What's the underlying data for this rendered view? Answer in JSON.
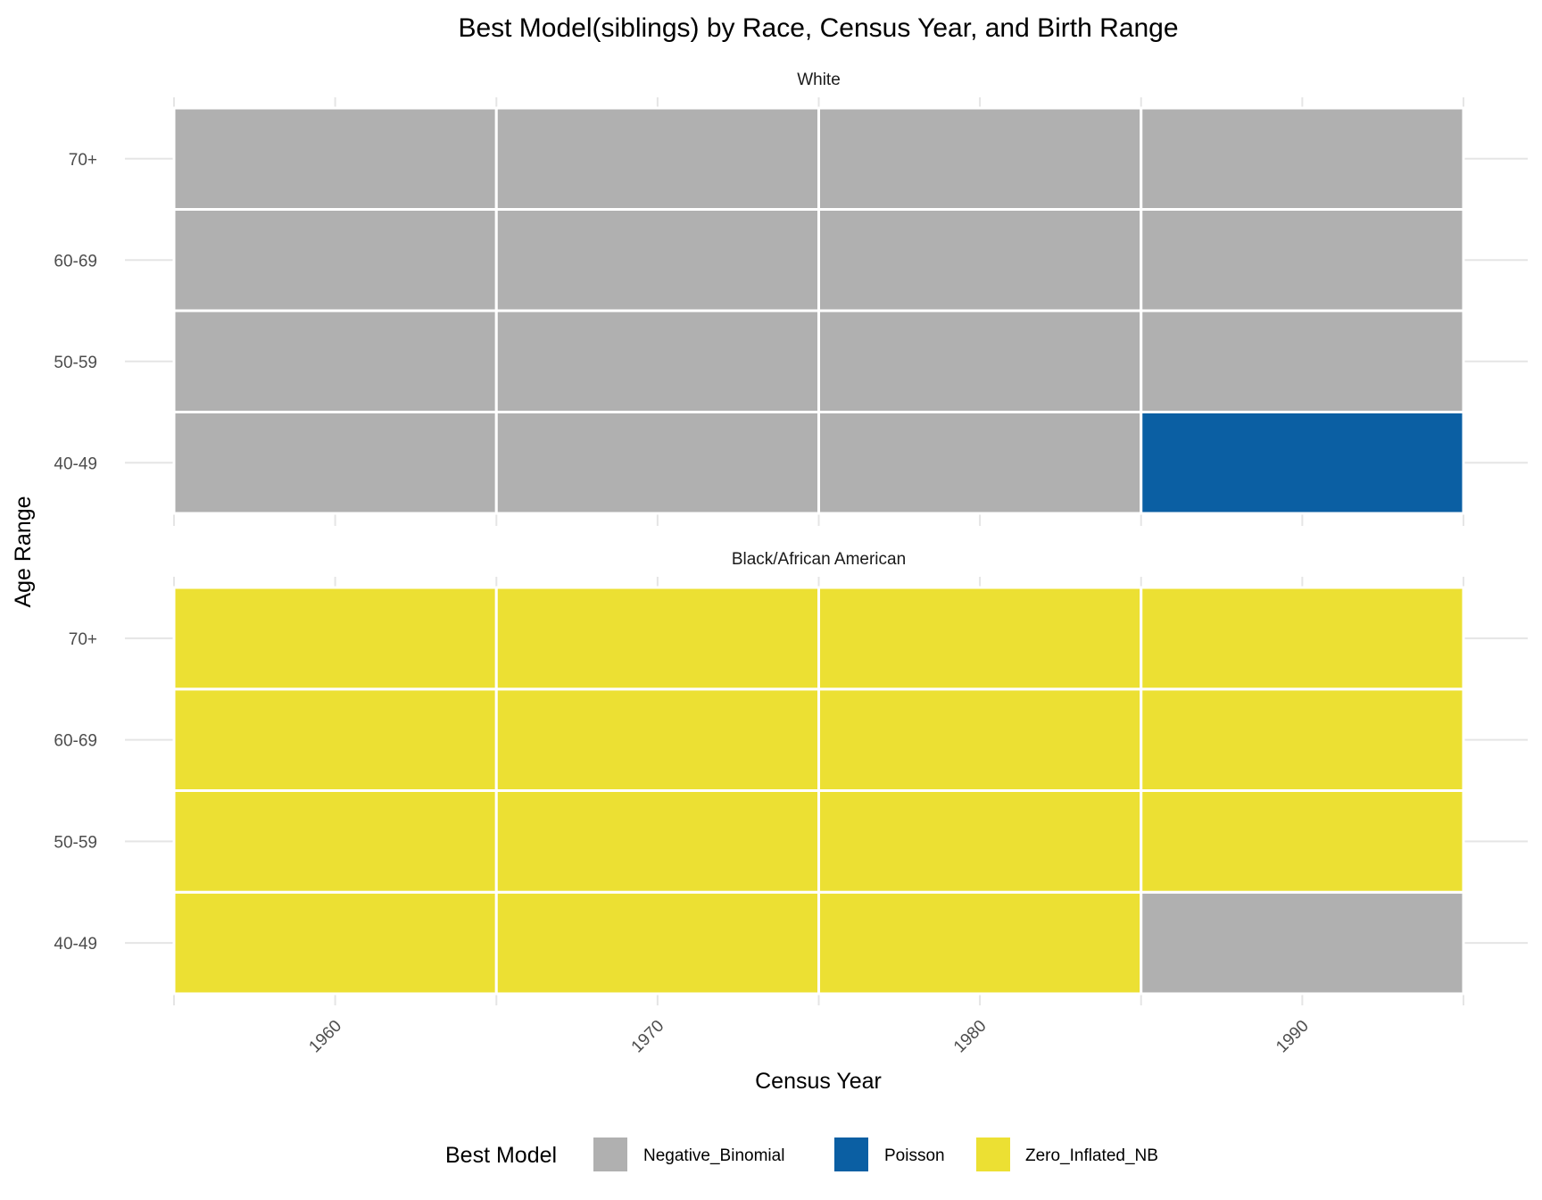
{
  "chart_data": {
    "type": "heatmap",
    "title": "Best Model(siblings) by Race, Census Year, and Birth Range",
    "xlabel": "Census Year",
    "ylabel": "Age Range",
    "x_categories": [
      "1960",
      "1970",
      "1980",
      "1990"
    ],
    "y_categories": [
      "40-49",
      "50-59",
      "60-69",
      "70+"
    ],
    "legend": {
      "title": "Best Model",
      "position": "bottom",
      "entries": [
        {
          "name": "Negative_Binomial",
          "color": "#b0b0b0"
        },
        {
          "name": "Poisson",
          "color": "#0b5fa3"
        },
        {
          "name": "Zero_Inflated_NB",
          "color": "#ece033"
        }
      ]
    },
    "facets": [
      {
        "name": "White",
        "cells": [
          [
            "Negative_Binomial",
            "Negative_Binomial",
            "Negative_Binomial",
            "Poisson"
          ],
          [
            "Negative_Binomial",
            "Negative_Binomial",
            "Negative_Binomial",
            "Negative_Binomial"
          ],
          [
            "Negative_Binomial",
            "Negative_Binomial",
            "Negative_Binomial",
            "Negative_Binomial"
          ],
          [
            "Negative_Binomial",
            "Negative_Binomial",
            "Negative_Binomial",
            "Negative_Binomial"
          ]
        ]
      },
      {
        "name": "Black/African American",
        "cells": [
          [
            "Zero_Inflated_NB",
            "Zero_Inflated_NB",
            "Zero_Inflated_NB",
            "Negative_Binomial"
          ],
          [
            "Zero_Inflated_NB",
            "Zero_Inflated_NB",
            "Zero_Inflated_NB",
            "Zero_Inflated_NB"
          ],
          [
            "Zero_Inflated_NB",
            "Zero_Inflated_NB",
            "Zero_Inflated_NB",
            "Zero_Inflated_NB"
          ],
          [
            "Zero_Inflated_NB",
            "Zero_Inflated_NB",
            "Zero_Inflated_NB",
            "Zero_Inflated_NB"
          ]
        ]
      }
    ]
  }
}
